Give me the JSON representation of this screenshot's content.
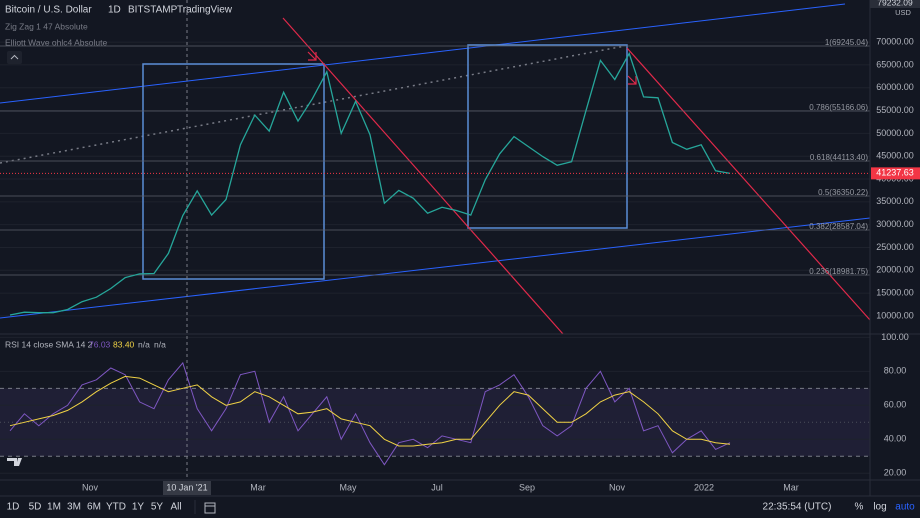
{
  "header": {
    "title": "Bitcoin / U.S. Dollar",
    "interval": "1D",
    "exchange": "BITSTAMP",
    "source": "TradingView",
    "indicators": [
      "Zig Zag 1 47 Absolute",
      "Elliott Wave ohlc4 Absolute"
    ]
  },
  "chart_data": [
    {
      "type": "line",
      "currency": "USD",
      "color": "#26a69a",
      "values": [
        10200,
        10800,
        10700,
        10700,
        11400,
        13100,
        14100,
        16000,
        18400,
        19200,
        19300,
        23700,
        32000,
        37400,
        32100,
        35500,
        47500,
        54000,
        50500,
        59000,
        52700,
        57600,
        63500,
        50000,
        57000,
        49700,
        34700,
        37500,
        35800,
        32500,
        33800,
        33100,
        32100,
        39800,
        45500,
        49300,
        47100,
        44900,
        43000,
        43800,
        55000,
        66000,
        61800,
        67500,
        58000,
        57800,
        48000,
        46500,
        47500,
        41800,
        41237.63
      ],
      "last_value": 41237.63,
      "ylim": [
        6030,
        79232.09
      ],
      "yticks": [
        {
          "value": 10000,
          "label": "10000.00"
        },
        {
          "value": 15000,
          "label": "15000.00"
        },
        {
          "value": 20000,
          "label": "20000.00"
        },
        {
          "value": 25000,
          "label": "25000.00"
        },
        {
          "value": 30000,
          "label": "30000.00"
        },
        {
          "value": 35000,
          "label": "35000.00"
        },
        {
          "value": 40000,
          "label": "40000.00"
        },
        {
          "value": 45000,
          "label": "45000.00"
        },
        {
          "value": 50000,
          "label": "50000.00"
        },
        {
          "value": 55000,
          "label": "55000.00"
        },
        {
          "value": 60000,
          "label": "60000.00"
        },
        {
          "value": 65000,
          "label": "65000.00"
        },
        {
          "value": 70000,
          "label": "70000.00"
        }
      ]
    },
    {
      "type": "line",
      "title": "RSI 14 close SMA 14 2",
      "series": [
        {
          "color": "#7e57c2",
          "values": [
            45,
            55,
            48,
            55,
            60,
            72,
            75,
            82,
            78,
            62,
            58,
            75,
            85,
            58,
            45,
            58,
            78,
            80,
            50,
            65,
            45,
            55,
            65,
            40,
            55,
            38,
            25,
            38,
            40,
            35,
            42,
            40,
            38,
            68,
            72,
            78,
            65,
            48,
            42,
            48,
            70,
            80,
            62,
            70,
            45,
            48,
            32,
            40,
            45,
            34,
            38
          ]
        },
        {
          "color": "#f0d245",
          "values": [
            48,
            50,
            52,
            54,
            57,
            62,
            68,
            73,
            77,
            76,
            72,
            68,
            70,
            72,
            65,
            60,
            62,
            68,
            65,
            60,
            55,
            56,
            58,
            52,
            50,
            48,
            40,
            36,
            36,
            37,
            38,
            40,
            40,
            50,
            60,
            68,
            66,
            58,
            50,
            50,
            55,
            62,
            66,
            68,
            62,
            55,
            45,
            40,
            40,
            38,
            37
          ]
        }
      ],
      "legend_values": [
        76.03,
        {
          "value": 83.4,
          "label": "83.40"
        },
        "n/a",
        "n/a"
      ],
      "band": [
        30,
        70
      ],
      "midline": 50,
      "ylim": [
        16,
        102
      ],
      "yticks": [
        {
          "value": 20,
          "label": "20.00"
        },
        {
          "value": 40,
          "label": "40.00"
        },
        {
          "value": 60,
          "label": "60.00"
        },
        {
          "value": 80,
          "label": "80.00"
        },
        {
          "value": 100,
          "label": "100.00"
        }
      ]
    }
  ],
  "fib_levels": [
    "1(69245.04)",
    "0.786(55166.06)",
    "0.618(44113.40)",
    "0.5(36350.22)",
    "0.382(28587.04)",
    "0.236(18981.75)"
  ],
  "time_axis": [
    "Nov",
    "10 Jan '21",
    "Mar",
    "May",
    "Jul",
    "Sep",
    "Nov",
    "2022",
    "Mar"
  ],
  "toolbar": {
    "ranges": [
      "1D",
      "5D",
      "1M",
      "3M",
      "6M",
      "YTD",
      "1Y",
      "5Y",
      "All"
    ],
    "clock": "22:35:54 (UTC)",
    "options": [
      "%",
      "log",
      "auto"
    ]
  }
}
